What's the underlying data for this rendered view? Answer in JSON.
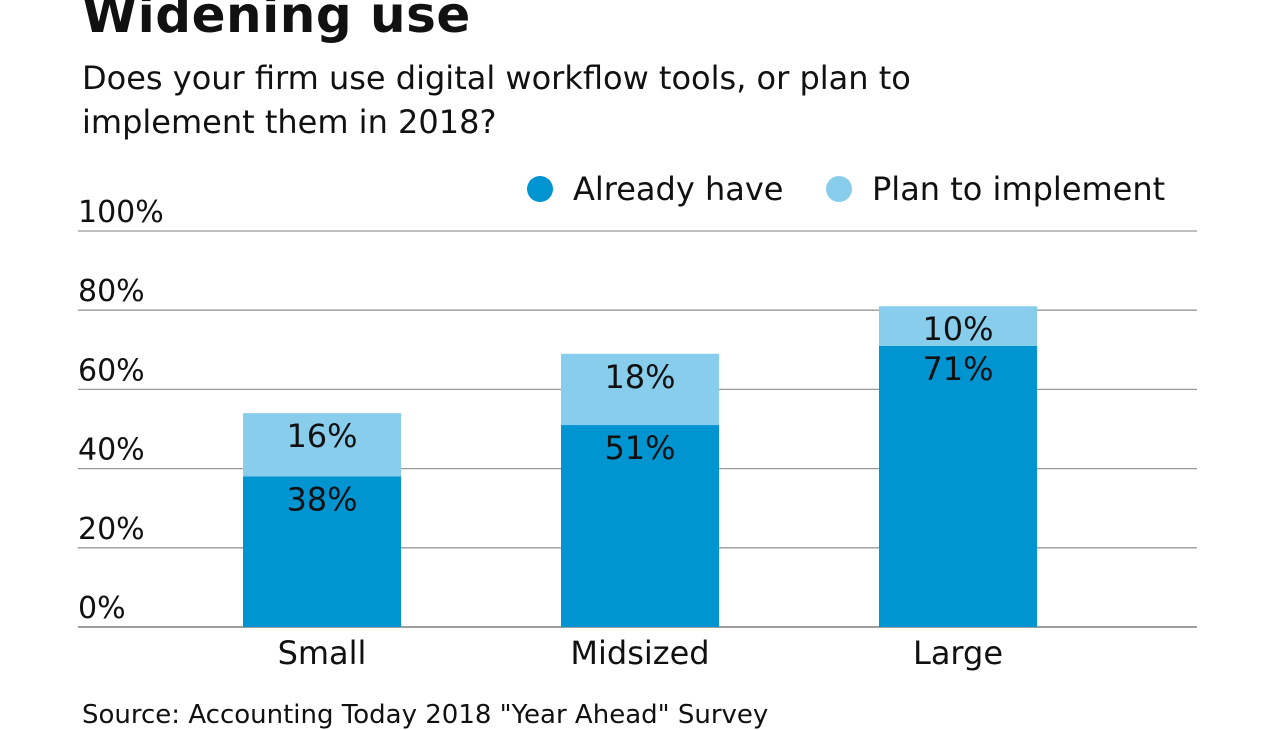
{
  "chart_data": {
    "type": "bar",
    "stacked": true,
    "title": "Widening use",
    "subtitle": "Does your firm use digital workflow tools, or plan to implement them in 2018?",
    "categories": [
      "Small",
      "Midsized",
      "Large"
    ],
    "series": [
      {
        "name": "Already have",
        "values": [
          38,
          51,
          71
        ],
        "color": "#0094d0"
      },
      {
        "name": "Plan to implement",
        "values": [
          16,
          18,
          10
        ],
        "color": "#88cdec"
      }
    ],
    "yticks": [
      "0%",
      "20%",
      "40%",
      "60%",
      "80%",
      "100%"
    ],
    "ylim": [
      0,
      100
    ],
    "grid": true,
    "legend": "top-right",
    "source": "Source: Accounting Today 2018 \"Year Ahead\" Survey"
  }
}
